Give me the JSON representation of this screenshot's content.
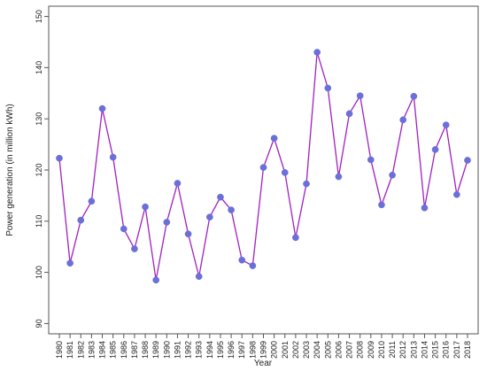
{
  "chart_data": {
    "type": "line",
    "title": "",
    "xlabel": "Year",
    "ylabel": "Power generation (in million kWh)",
    "ylim": [
      88,
      152
    ],
    "yticks": [
      90,
      100,
      110,
      120,
      130,
      140,
      150
    ],
    "grid": false,
    "legend": "none",
    "line_color": "#a020c0",
    "marker_color": "#6b6fd8",
    "x": [
      "1980",
      "1981",
      "1982",
      "1983",
      "1984",
      "1985",
      "1986",
      "1987",
      "1988",
      "1989",
      "1990",
      "1991",
      "1992",
      "1993",
      "1994",
      "1995",
      "1996",
      "1997",
      "1998",
      "1999",
      "2000",
      "2001",
      "2002",
      "2003",
      "2004",
      "2005",
      "2006",
      "2007",
      "2008",
      "2009",
      "2010",
      "2011",
      "2012",
      "2013",
      "2014",
      "2015",
      "2016",
      "2017",
      "2018"
    ],
    "series": [
      {
        "values": [
          122.3,
          101.8,
          110.2,
          113.9,
          132.0,
          122.5,
          108.5,
          104.6,
          112.8,
          98.5,
          109.8,
          117.4,
          107.5,
          99.2,
          110.8,
          114.7,
          112.2,
          102.4,
          101.3,
          120.5,
          126.2,
          119.5,
          106.8,
          117.3,
          143.0,
          136.0,
          118.7,
          131.0,
          134.5,
          122.0,
          113.2,
          119.0,
          129.8,
          134.4,
          112.6,
          124.0,
          128.8,
          115.2,
          121.9
        ]
      }
    ]
  }
}
